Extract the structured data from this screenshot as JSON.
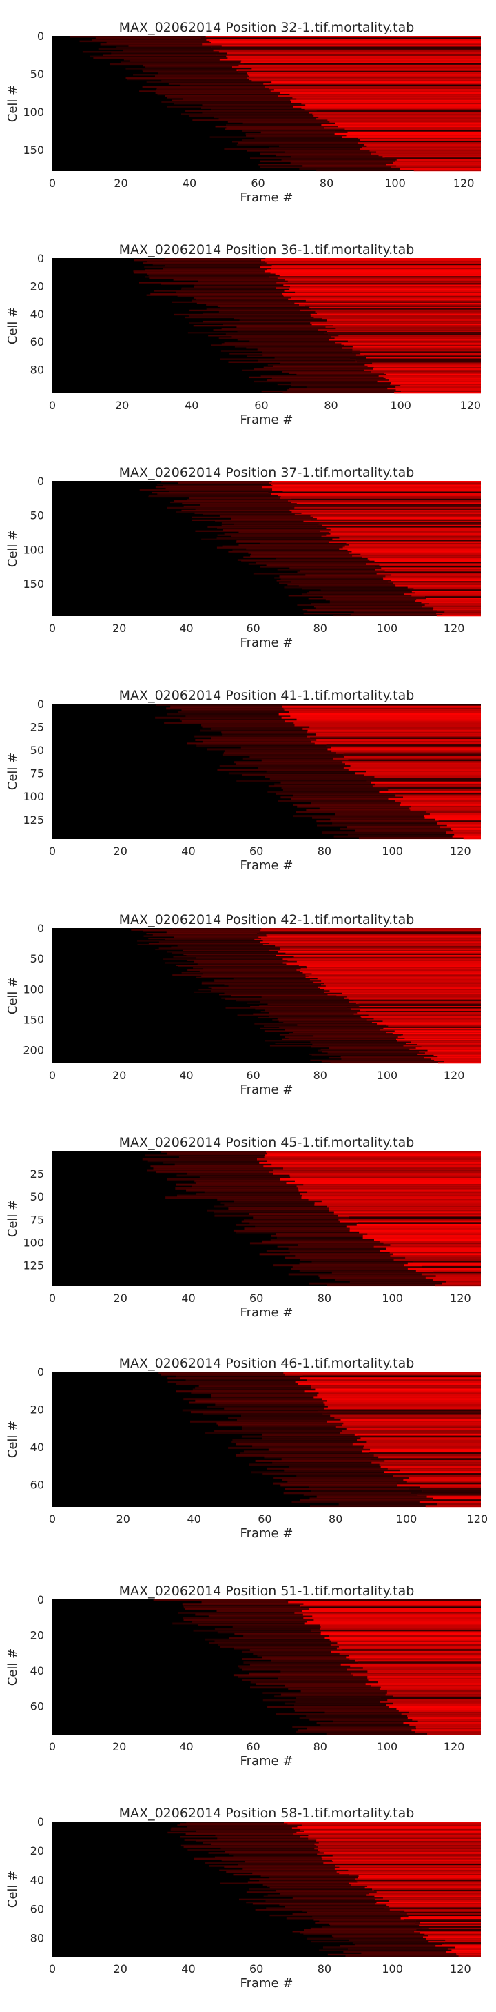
{
  "colors": {
    "background": "#000000",
    "signal": "#ff0000",
    "text": "#262626"
  },
  "chart_data": [
    {
      "type": "heatmap",
      "title": "MAX_02062014 Position 32-1.tif.mortality.tab",
      "xlabel": "Frame #",
      "ylabel": "Cell #",
      "xlim": [
        0,
        125
      ],
      "ylim": [
        178,
        0
      ],
      "x_ticks": [
        0,
        20,
        40,
        60,
        80,
        100,
        120
      ],
      "y_ticks": [
        0,
        50,
        100,
        150
      ],
      "n_cells": 178,
      "n_frames": 125,
      "onset_frame_range": [
        44,
        104
      ]
    },
    {
      "type": "heatmap",
      "title": "MAX_02062014 Position 36-1.tif.mortality.tab",
      "xlabel": "Frame #",
      "ylabel": "Cell #",
      "xlim": [
        0,
        123
      ],
      "ylim": [
        97,
        0
      ],
      "x_ticks": [
        0,
        20,
        40,
        60,
        80,
        100,
        120
      ],
      "y_ticks": [
        0,
        20,
        40,
        60,
        80
      ],
      "n_cells": 97,
      "n_frames": 123,
      "onset_frame_range": [
        60,
        100
      ]
    },
    {
      "type": "heatmap",
      "title": "MAX_02062014 Position 37-1.tif.mortality.tab",
      "xlabel": "Frame #",
      "ylabel": "Cell #",
      "xlim": [
        0,
        128
      ],
      "ylim": [
        197,
        0
      ],
      "x_ticks": [
        0,
        20,
        40,
        60,
        80,
        100,
        120
      ],
      "y_ticks": [
        0,
        50,
        100,
        150
      ],
      "n_cells": 197,
      "n_frames": 128,
      "onset_frame_range": [
        64,
        118
      ]
    },
    {
      "type": "heatmap",
      "title": "MAX_02062014 Position 41-1.tif.mortality.tab",
      "xlabel": "Frame #",
      "ylabel": "Cell #",
      "xlim": [
        0,
        126
      ],
      "ylim": [
        146,
        0
      ],
      "x_ticks": [
        0,
        20,
        40,
        60,
        80,
        100,
        120
      ],
      "y_ticks": [
        0,
        25,
        50,
        75,
        100,
        125
      ],
      "n_cells": 146,
      "n_frames": 126,
      "onset_frame_range": [
        66,
        120
      ]
    },
    {
      "type": "heatmap",
      "title": "MAX_02062014 Position 42-1.tif.mortality.tab",
      "xlabel": "Frame #",
      "ylabel": "Cell #",
      "xlim": [
        0,
        128
      ],
      "ylim": [
        222,
        0
      ],
      "x_ticks": [
        0,
        20,
        40,
        60,
        80,
        100,
        120
      ],
      "y_ticks": [
        0,
        50,
        100,
        150,
        200
      ],
      "n_cells": 222,
      "n_frames": 128,
      "onset_frame_range": [
        60,
        116
      ]
    },
    {
      "type": "heatmap",
      "title": "MAX_02062014 Position 45-1.tif.mortality.tab",
      "xlabel": "Frame #",
      "ylabel": "Cell #",
      "xlim": [
        0,
        126
      ],
      "ylim": [
        148,
        0
      ],
      "x_ticks": [
        0,
        20,
        40,
        60,
        80,
        100,
        120
      ],
      "y_ticks": [
        25,
        50,
        75,
        100,
        125
      ],
      "n_cells": 148,
      "n_frames": 126,
      "onset_frame_range": [
        60,
        116
      ]
    },
    {
      "type": "heatmap",
      "title": "MAX_02062014 Position 46-1.tif.mortality.tab",
      "xlabel": "Frame #",
      "ylabel": "Cell #",
      "xlim": [
        0,
        121
      ],
      "ylim": [
        72,
        0
      ],
      "x_ticks": [
        0,
        20,
        40,
        60,
        80,
        100,
        120
      ],
      "y_ticks": [
        0,
        20,
        40,
        60
      ],
      "n_cells": 72,
      "n_frames": 121,
      "onset_frame_range": [
        68,
        108
      ]
    },
    {
      "type": "heatmap",
      "title": "MAX_02062014 Position 51-1.tif.mortality.tab",
      "xlabel": "Frame #",
      "ylabel": "Cell #",
      "xlim": [
        0,
        128
      ],
      "ylim": [
        76,
        0
      ],
      "x_ticks": [
        0,
        20,
        40,
        60,
        80,
        100,
        120
      ],
      "y_ticks": [
        0,
        20,
        40,
        60
      ],
      "n_cells": 76,
      "n_frames": 128,
      "onset_frame_range": [
        72,
        112
      ]
    },
    {
      "type": "heatmap",
      "title": "MAX_02062014 Position 58-1.tif.mortality.tab",
      "xlabel": "Frame #",
      "ylabel": "Cell #",
      "xlim": [
        0,
        126
      ],
      "ylim": [
        93,
        0
      ],
      "x_ticks": [
        0,
        20,
        40,
        60,
        80,
        100,
        120
      ],
      "y_ticks": [
        0,
        20,
        40,
        60,
        80
      ],
      "n_cells": 93,
      "n_frames": 126,
      "onset_frame_range": [
        70,
        120
      ]
    }
  ]
}
